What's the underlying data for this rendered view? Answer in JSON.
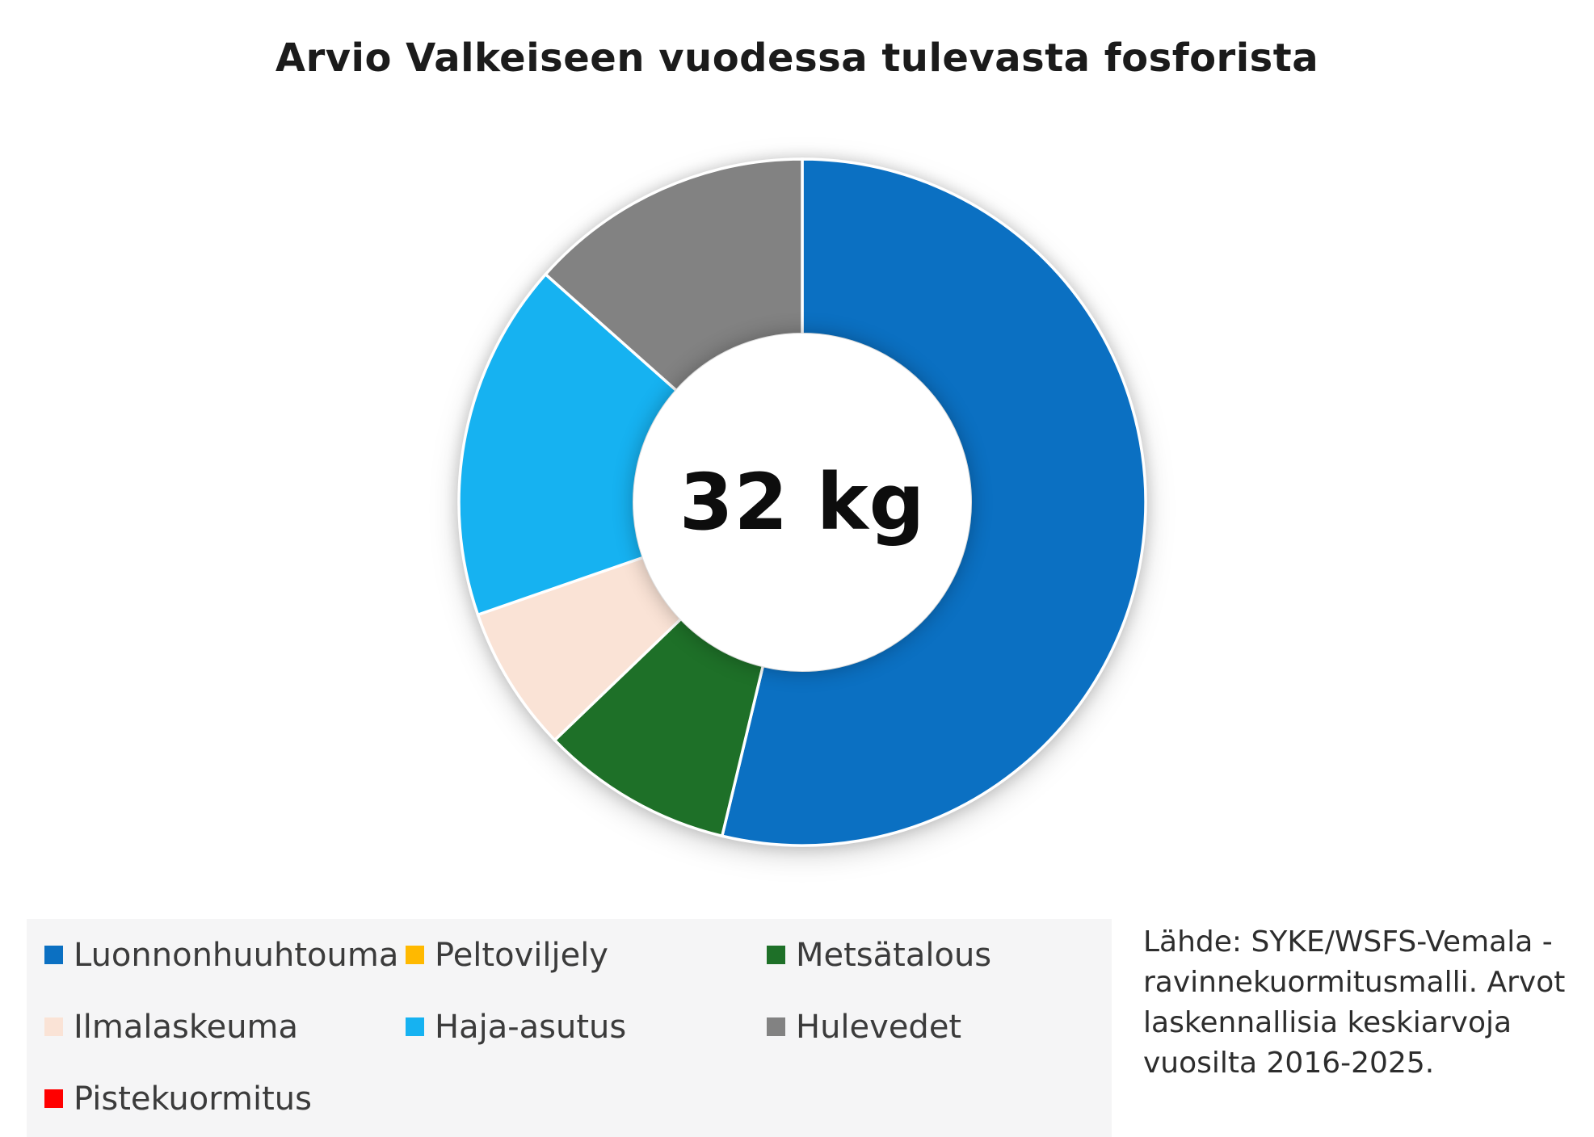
{
  "chart_data": {
    "type": "pie",
    "subtype": "donut",
    "title": "Arvio Valkeiseen vuodessa tulevasta fosforista",
    "center_label": "32 kg",
    "total": 32,
    "unit": "kg",
    "start_angle_deg": 0,
    "direction": "clockwise",
    "inner_radius_ratio": 0.49,
    "legend_position": "bottom-left",
    "slice_separator_color": "#ffffff",
    "series": [
      {
        "name": "Luonnonhuuhtouma",
        "value": 17.2,
        "percent": 53.7,
        "color": "#0B70C2"
      },
      {
        "name": "Peltoviljely",
        "value": 0,
        "percent": 0,
        "color": "#FFB900"
      },
      {
        "name": "Metsätalous",
        "value": 2.9,
        "percent": 9.1,
        "color": "#1E7028"
      },
      {
        "name": "Ilmalaskeuma",
        "value": 2.2,
        "percent": 6.9,
        "color": "#FAE3D6"
      },
      {
        "name": "Haja-asutus",
        "value": 5.4,
        "percent": 16.9,
        "color": "#16B2F1"
      },
      {
        "name": "Hulevedet",
        "value": 4.3,
        "percent": 13.4,
        "color": "#828282"
      },
      {
        "name": "Pistekuormitus",
        "value": 0,
        "percent": 0,
        "color": "#FF0000"
      }
    ],
    "source_note": "Lähde: SYKE/WSFS-Vemala -ravinnekuormitusmalli. Arvot laskennallisia keskiarvoja vuosilta 2016-2025."
  }
}
